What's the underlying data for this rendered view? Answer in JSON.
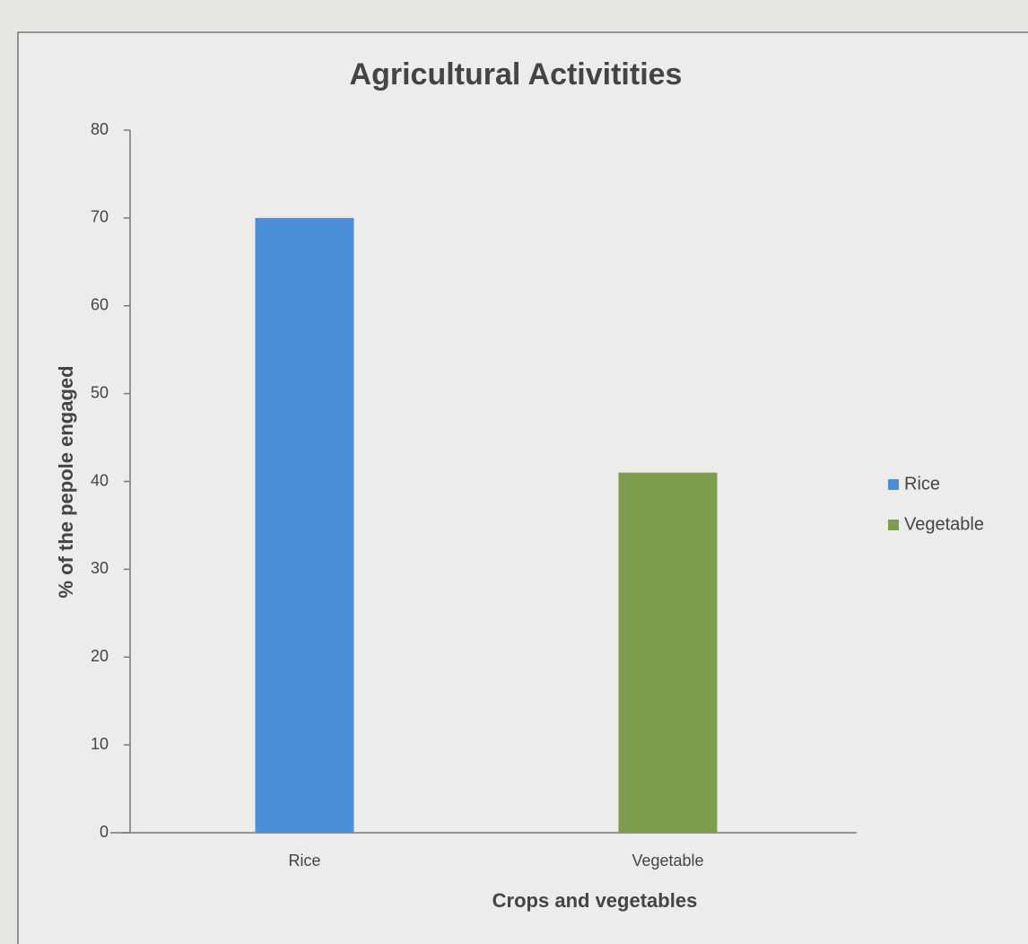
{
  "chart_data": {
    "type": "bar",
    "title": "Agricultural Activitities",
    "x_label": "Crops and vegetables",
    "y_label": "% of the pepole engaged",
    "categories": [
      "Rice",
      "Vegetable"
    ],
    "series": [
      {
        "name": "Rice",
        "color": "#4a8fd8",
        "values": [
          70,
          null
        ]
      },
      {
        "name": "Vegetable",
        "color": "#7d9c4e",
        "values": [
          null,
          41
        ]
      }
    ],
    "ylim": [
      0,
      80
    ],
    "yticks": [
      0,
      10,
      20,
      30,
      40,
      50,
      60,
      70,
      80
    ],
    "grid": false,
    "legend": "right"
  }
}
